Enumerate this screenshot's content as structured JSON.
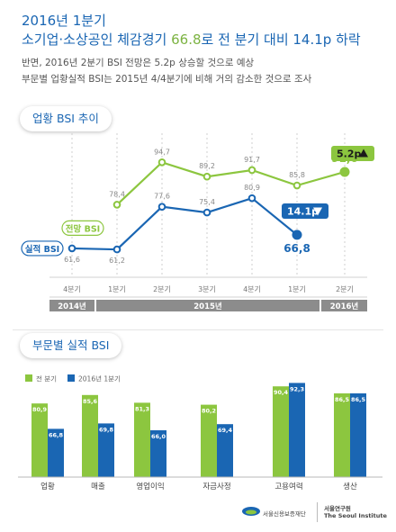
{
  "header": {
    "title_line1": "2016년 1분기",
    "title_line2_a": "소기업·소상공인 체감경기 ",
    "title_line2_b": "66.8",
    "title_line2_c": "로 전 분기 대비 14.1p 하락",
    "subtitle_1": "반면, 2016년 2분기 BSI 전망은 5.2p 상승할 것으로 예상",
    "subtitle_2": "부문별 업황실적 BSI는 2015년 4/4분기에 비해 거의 감소한 것으로 조사"
  },
  "section1": {
    "title": "업황 BSI 추이"
  },
  "section2": {
    "title": "부문별 실적 BSI"
  },
  "footer": {
    "logo1": "서울신용보증재단",
    "logo2_a": "서울연구원",
    "logo2_b": "The Seoul Institute"
  },
  "colors": {
    "green": "#8cc63f",
    "blue": "#1a66b3",
    "header_blue": "#1a66b3",
    "period_bar": "#8c8c8c"
  },
  "chart_data": [
    {
      "type": "line",
      "title": "업황 BSI 추이",
      "categories": [
        "4분기",
        "1분기",
        "2분기",
        "3분기",
        "4분기",
        "1분기",
        "2분기"
      ],
      "year_groups": [
        {
          "label": "2014년",
          "span": [
            0,
            0
          ]
        },
        {
          "label": "2015년",
          "span": [
            1,
            4
          ]
        },
        {
          "label": "2016년",
          "span": [
            5,
            6
          ]
        }
      ],
      "series": [
        {
          "name": "전망 BSI",
          "color": "#8cc63f",
          "values": [
            null,
            78.4,
            94.7,
            89.2,
            91.7,
            85.8,
            91.0
          ],
          "labels": [
            "",
            "78,4",
            "94,7",
            "89,2",
            "91,7",
            "85,8",
            "91,0"
          ]
        },
        {
          "name": "실적 BSI",
          "color": "#1a66b3",
          "values": [
            61.6,
            61.2,
            77.6,
            75.4,
            80.9,
            66.8,
            null
          ],
          "labels": [
            "61,6",
            "61,2",
            "77,6",
            "75,4",
            "80,9",
            "66,8",
            ""
          ]
        }
      ],
      "annotations": [
        {
          "text": "5.2p",
          "direction": "up",
          "color": "#8cc63f"
        },
        {
          "text": "14.1p",
          "direction": "down",
          "color": "#1a66b3"
        }
      ],
      "ylim": [
        55,
        100
      ]
    },
    {
      "type": "bar",
      "title": "부문별 실적 BSI",
      "categories": [
        "업황",
        "매출",
        "영업이익",
        "자금사정",
        "고용여력",
        "생산"
      ],
      "series": [
        {
          "name": "전 분기",
          "color": "#8cc63f",
          "values": [
            80.9,
            85.6,
            81.3,
            80.2,
            90.4,
            86.5
          ],
          "labels": [
            "80,9",
            "85,6",
            "81,3",
            "80,2",
            "90,4",
            "86,5"
          ]
        },
        {
          "name": "2016년 1분기",
          "color": "#1a66b3",
          "values": [
            66.8,
            69.8,
            66.0,
            69.4,
            92.3,
            86.5
          ],
          "labels": [
            "66,8",
            "69,8",
            "66,0",
            "69,4",
            "92,3",
            "86,5"
          ]
        }
      ],
      "ylim": [
        40,
        100
      ],
      "legend": "top-left"
    }
  ]
}
